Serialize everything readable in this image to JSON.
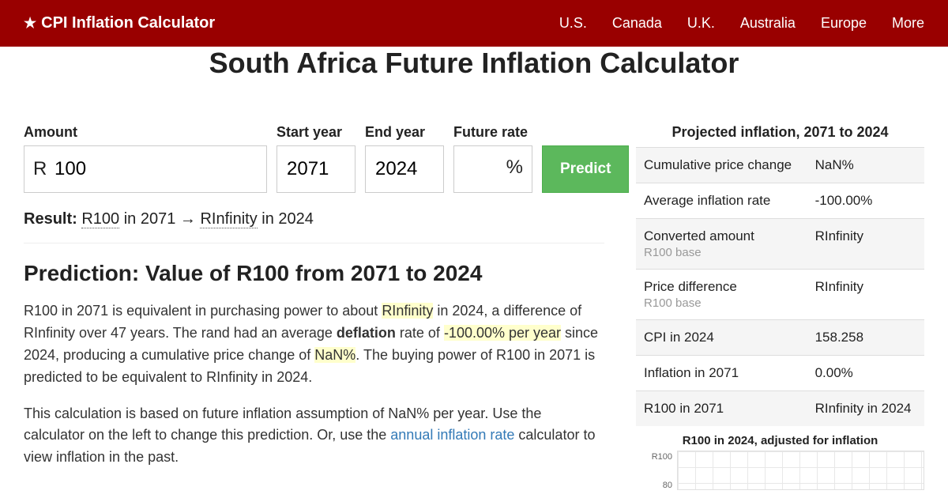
{
  "header": {
    "brand": "CPI Inflation Calculator",
    "nav": [
      "U.S.",
      "Canada",
      "U.K.",
      "Australia",
      "Europe",
      "More"
    ]
  },
  "page_title": "South Africa Future Inflation Calculator",
  "form": {
    "amount_label": "Amount",
    "amount_prefix": "R",
    "amount_value": "100",
    "start_label": "Start year",
    "start_value": "2071",
    "end_label": "End year",
    "end_value": "2024",
    "rate_label": "Future rate",
    "rate_value": "",
    "rate_suffix": "%",
    "button": "Predict"
  },
  "result": {
    "label": "Result:",
    "from_amount": "R100",
    "from_year": " in 2071 → ",
    "to_amount": "RInfinity",
    "to_year": " in 2024"
  },
  "section_title": "Prediction: Value of R100 from 2071 to 2024",
  "para1": {
    "t1": "R100 in 2071 is equivalent in purchasing power to about ",
    "h1": "RInfinity",
    "t2": " in 2024, a difference of RInfinity over 47 years. The rand had an average ",
    "b1": "deflation",
    "t3": " rate of ",
    "h2": "-100.00% per year",
    "t4": " since 2024, producing a cumulative price change of ",
    "h3": "NaN%",
    "t5": ". The buying power of R100 in 2071 is predicted to be equivalent to RInfinity in 2024."
  },
  "para2": {
    "t1": "This calculation is based on future inflation assumption of NaN% per year. Use the calculator on the left to change this prediction. Or, use the ",
    "link": "annual inflation rate",
    "t2": " calculator to view inflation in the past."
  },
  "sidebar": {
    "title": "Projected inflation, 2071 to 2024",
    "rows": [
      {
        "label": "Cumulative price change",
        "sub": "",
        "value": "NaN%"
      },
      {
        "label": "Average inflation rate",
        "sub": "",
        "value": "-100.00%"
      },
      {
        "label": "Converted amount",
        "sub": "R100 base",
        "value": "RInfinity"
      },
      {
        "label": "Price difference",
        "sub": "R100 base",
        "value": "RInfinity"
      },
      {
        "label": "CPI in 2024",
        "sub": "",
        "value": "158.258"
      },
      {
        "label": "Inflation in 2071",
        "sub": "",
        "value": "0.00%"
      },
      {
        "label": "R100 in 2071",
        "sub": "",
        "value": "RInfinity in 2024"
      }
    ],
    "chart_title": "R100 in 2024, adjusted for inflation",
    "yticks": [
      "R100",
      "80"
    ]
  },
  "colors": {
    "header_bg": "#990000",
    "button_bg": "#5cb85c",
    "highlight": "#ffffcc",
    "link": "#337ab7"
  }
}
